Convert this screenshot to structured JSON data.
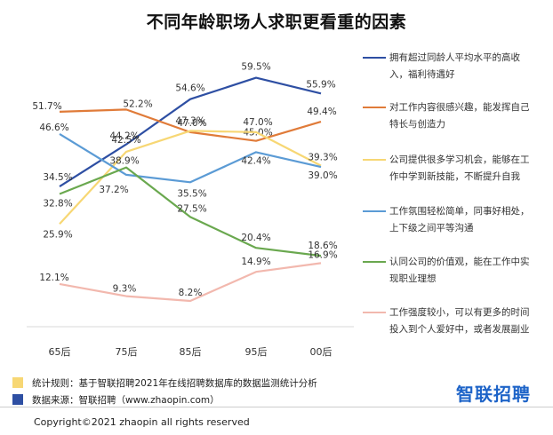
{
  "title": "不同年龄职场人求职更看重的因素",
  "chart_data": {
    "type": "line",
    "title": "不同年龄职场人求职更看重的因素",
    "xlabel": "",
    "ylabel": "",
    "ylim": [
      5,
      62
    ],
    "grid": false,
    "legend_position": "right",
    "categories": [
      "65后",
      "75后",
      "85后",
      "95后",
      "00后"
    ],
    "series": [
      {
        "name": "拥有超过同龄人平均水平的高收入，福利待遇好",
        "color": "#2e4fa3",
        "values": [
          34.5,
          44.2,
          54.6,
          59.5,
          55.9
        ]
      },
      {
        "name": "对工作内容很感兴趣，能发挥自己特长与创造力",
        "color": "#e07b39",
        "values": [
          51.7,
          52.2,
          47.0,
          45.0,
          49.4
        ]
      },
      {
        "name": "公司提供很多学习机会，能够在工作中学到新技能，不断提升自我",
        "color": "#f7d774",
        "values": [
          25.9,
          42.5,
          47.3,
          47.0,
          39.3
        ]
      },
      {
        "name": "工作氛围轻松简单，同事好相处，上下级之间平等沟通",
        "color": "#5b9bd5",
        "values": [
          46.6,
          37.2,
          35.5,
          42.4,
          39.0
        ]
      },
      {
        "name": "认同公司的价值观，能在工作中实现职业理想",
        "color": "#6aa84f",
        "values": [
          32.8,
          38.9,
          27.5,
          20.4,
          18.6
        ]
      },
      {
        "name": "工作强度较小，可以有更多的时间投入到个人爱好中，或者发展副业",
        "color": "#f2b8ae",
        "values": [
          12.1,
          9.3,
          8.2,
          14.9,
          16.9
        ]
      }
    ]
  },
  "legend_lines": [
    [
      "拥有超过同龄人平均水平的高收",
      "入，福利待遇好"
    ],
    [
      "对工作内容很感兴趣，能发挥自己",
      "特长与创造力"
    ],
    [
      "公司提供很多学习机会，能够在工",
      "作中学到新技能，不断提升自我"
    ],
    [
      "工作氛围轻松简单，同事好相处，",
      "上下级之间平等沟通"
    ],
    [
      "认同公司的价值观，能在工作中实",
      "现职业理想"
    ],
    [
      "工作强度较小，可以有更多的时间",
      "投入到个人爱好中，或者发展副业"
    ]
  ],
  "footnotes": {
    "rule": {
      "text": "统计规则：基于智联招聘2021年在线招聘数据库的数据监测统计分析",
      "color": "#f7d774"
    },
    "source": {
      "text": "数据来源：智联招聘（www.zhaopin.com）",
      "color": "#2e4fa3"
    }
  },
  "brand": "智联招聘",
  "copyright": "Copyright©2021 zhaopin  all rights reserved"
}
